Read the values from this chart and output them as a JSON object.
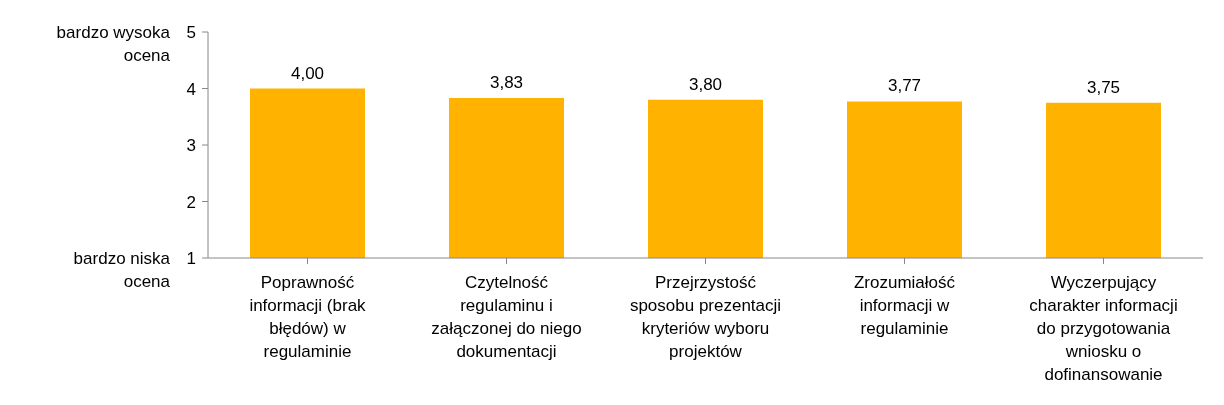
{
  "chart_data": {
    "type": "bar",
    "categories": [
      "Poprawność informacji (brak błędów) w regulaminie",
      "Czytelność regulaminu i załączonej do niego dokumentacji",
      "Przejrzystość sposobu prezentacji kryteriów wyboru projektów",
      "Zrozumiałość informacji w regulaminie",
      "Wyczerpujący charakter informacji do przygotowania wniosku o dofinansowanie"
    ],
    "values": [
      4.0,
      3.83,
      3.8,
      3.77,
      3.75
    ],
    "value_labels": [
      "4,00",
      "3,83",
      "3,80",
      "3,77",
      "3,75"
    ],
    "color": "#ffb300",
    "ylim": [
      1,
      5
    ],
    "yticks": [
      1,
      2,
      3,
      4,
      5
    ],
    "annotations": [
      "bardzo wysoka ocena",
      "bardzo niska ocena"
    ],
    "grid": false,
    "legend": false
  }
}
